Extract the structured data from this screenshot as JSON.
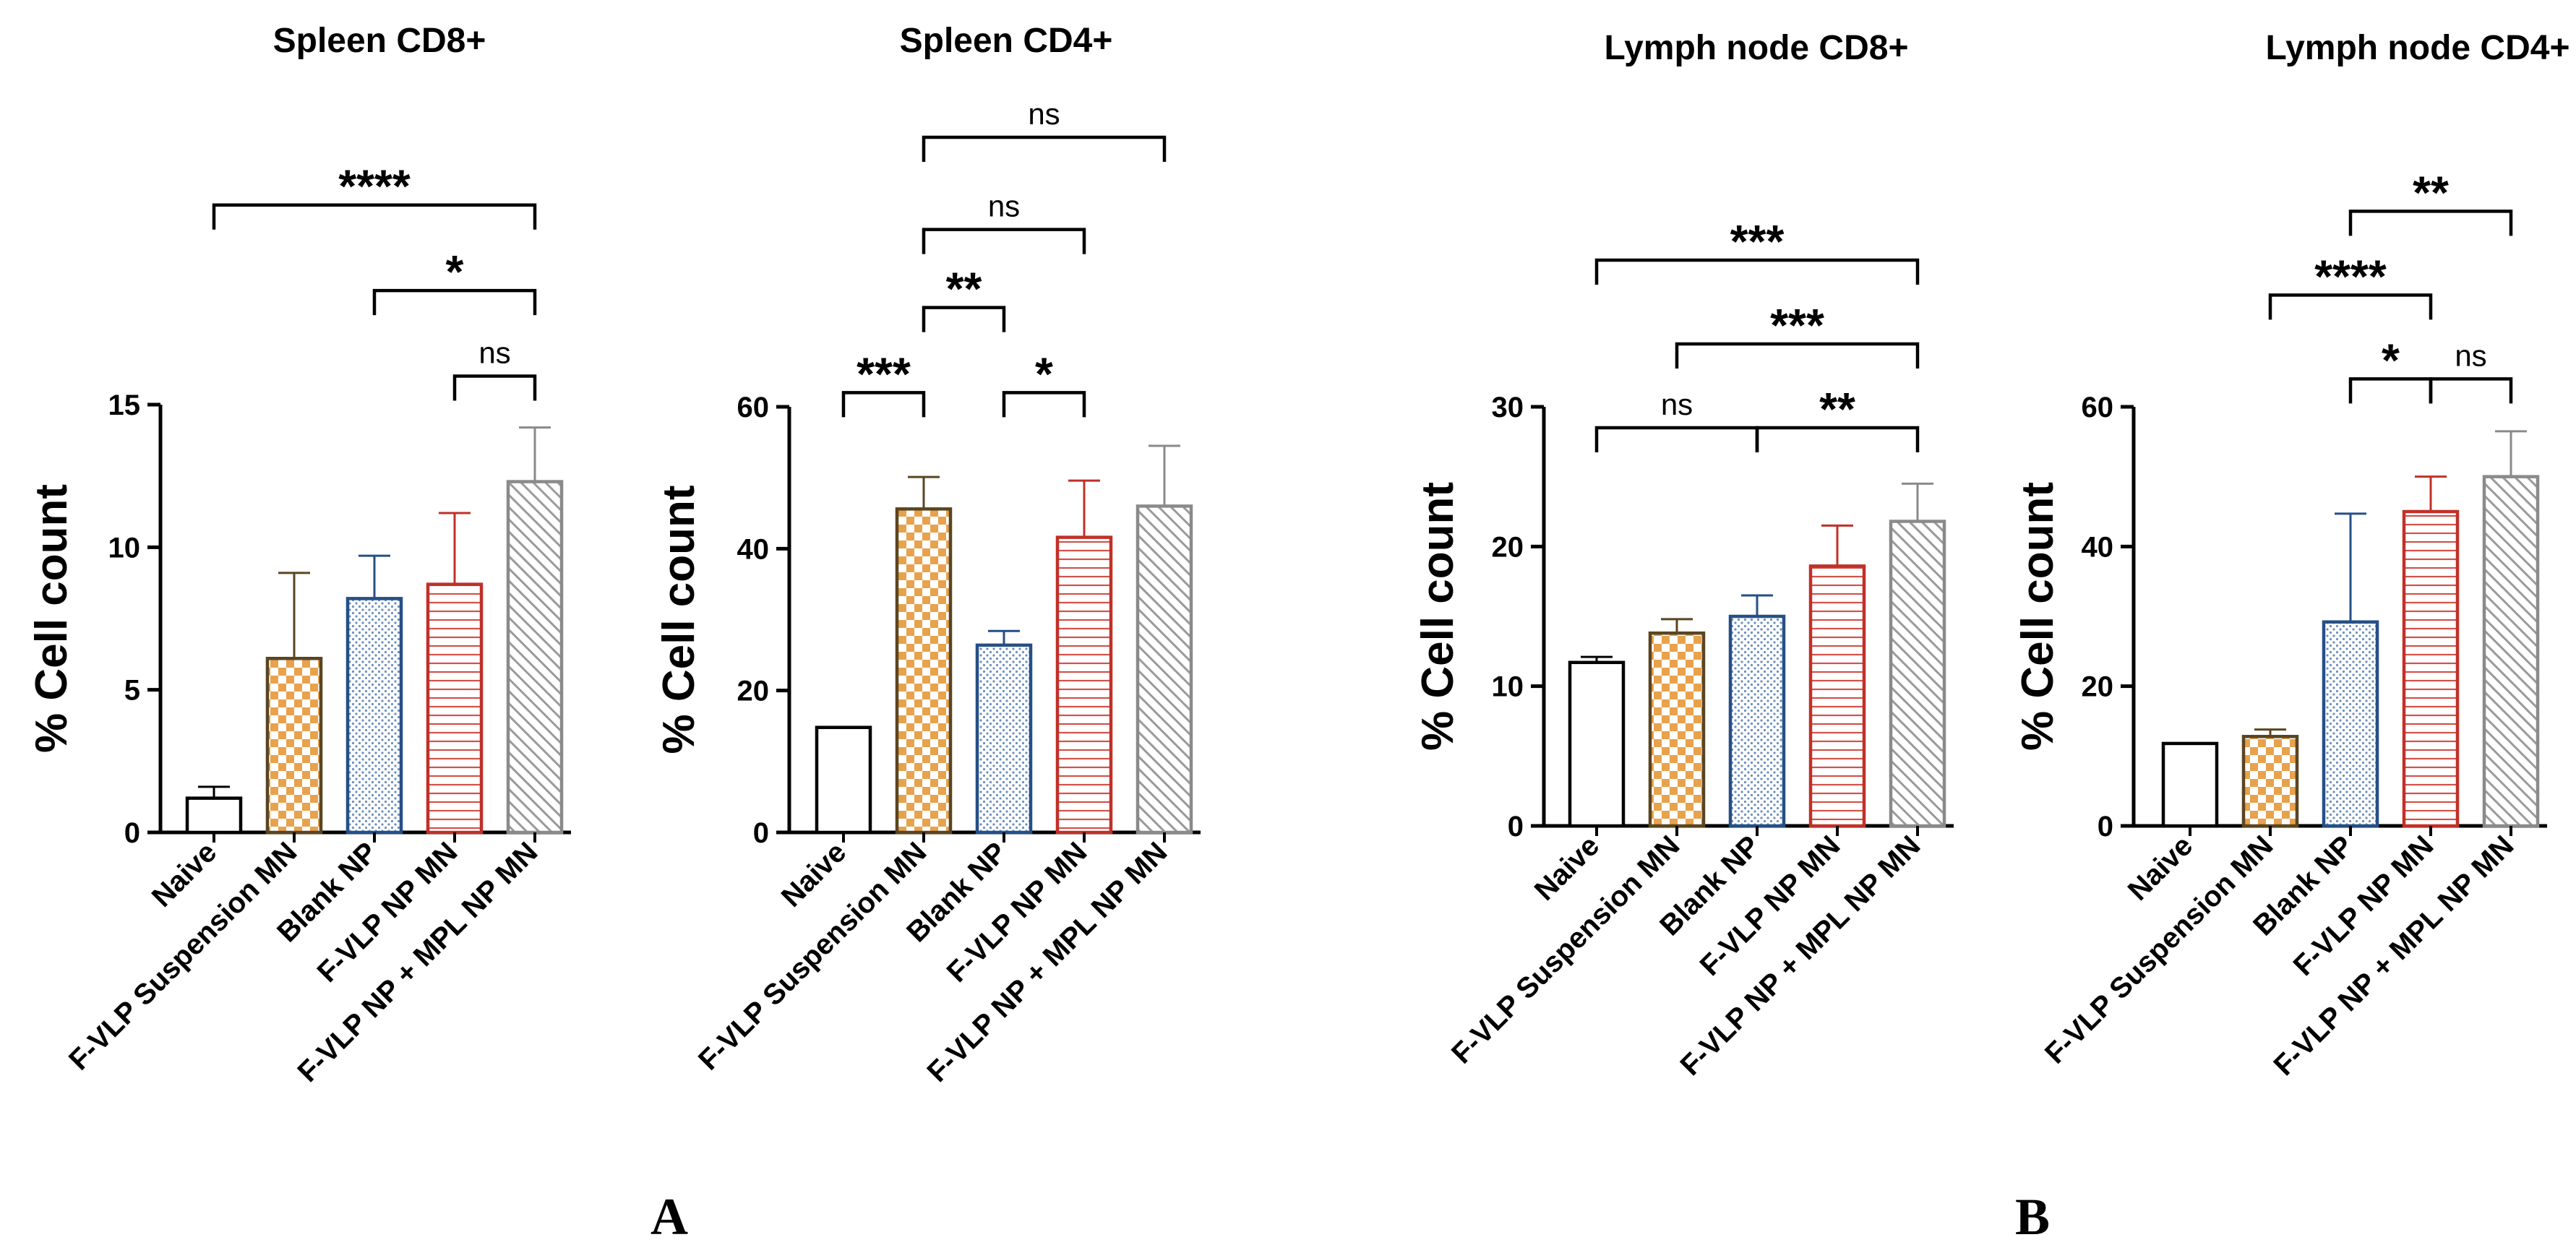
{
  "panel_labels": [
    "A",
    "B"
  ],
  "styles": {
    "naive": {
      "stroke": "#000000",
      "fill": "#ffffff",
      "pattern": "none"
    },
    "susp": {
      "stroke": "#5a4520",
      "fill": "#e8a24c",
      "pattern": "checker"
    },
    "blank": {
      "stroke": "#254f86",
      "fill": "#e4eef8",
      "pattern": "dots"
    },
    "fvlp": {
      "stroke": "#c03028",
      "fill": "#ffffff",
      "pattern": "hlines"
    },
    "mpl": {
      "stroke": "#8a8a8a",
      "fill": "#dcdcdc",
      "pattern": "diag"
    }
  },
  "chart_data": [
    {
      "type": "bar",
      "title": "Spleen CD8+",
      "ylabel": "% Cell count",
      "ylim": [
        0,
        15
      ],
      "yticks": [
        0,
        5,
        10,
        15
      ],
      "categories": [
        "Naive",
        "F-VLP Suspension MN",
        "Blank NP",
        "F-VLP NP MN",
        "F-VLP NP + MPL NP MN"
      ],
      "values": [
        1.2,
        6.1,
        8.2,
        8.7,
        12.3
      ],
      "errors": [
        0.4,
        3.0,
        1.5,
        2.5,
        1.9
      ],
      "comparisons": [
        {
          "from": 0,
          "to": 4,
          "label": "****",
          "y": 22.0
        },
        {
          "from": 2,
          "to": 4,
          "label": "*",
          "y": 19.0
        },
        {
          "from": 3,
          "to": 4,
          "label": "ns",
          "y": 16.0
        }
      ]
    },
    {
      "type": "bar",
      "title": "Spleen CD4+",
      "ylabel": "% Cell count",
      "ylim": [
        0,
        60
      ],
      "yticks": [
        0,
        20,
        40,
        60
      ],
      "categories": [
        "Naive",
        "F-VLP Suspension MN",
        "Blank NP",
        "F-VLP NP MN",
        "F-VLP NP + MPL NP MN"
      ],
      "values": [
        14.8,
        45.6,
        26.4,
        41.6,
        46.0
      ],
      "errors": [
        0,
        4.5,
        2.0,
        8.0,
        8.5
      ],
      "comparisons": [
        {
          "from": 1,
          "to": 4,
          "label": "ns",
          "y": 98.0
        },
        {
          "from": 1,
          "to": 3,
          "label": "ns",
          "y": 85.0
        },
        {
          "from": 1,
          "to": 2,
          "label": "**",
          "y": 74.0
        },
        {
          "from": 0,
          "to": 1,
          "label": "***",
          "y": 62.0
        },
        {
          "from": 2,
          "to": 3,
          "label": "*",
          "y": 62.0
        }
      ]
    },
    {
      "type": "bar",
      "title": "Lymph node CD8+",
      "ylabel": "% Cell count",
      "ylim": [
        0,
        30
      ],
      "yticks": [
        0,
        10,
        20,
        30
      ],
      "categories": [
        "Naive",
        "F-VLP Suspension MN",
        "Blank NP",
        "F-VLP NP MN",
        "F-VLP NP + MPL NP MN"
      ],
      "values": [
        11.7,
        13.8,
        15.0,
        18.6,
        21.8
      ],
      "errors": [
        0.4,
        1.0,
        1.5,
        2.9,
        2.7
      ],
      "comparisons": [
        {
          "from": 0,
          "to": 4,
          "label": "***",
          "y": 40.5
        },
        {
          "from": 1,
          "to": 4,
          "label": "***",
          "y": 34.5
        },
        {
          "from": 0,
          "to": 2,
          "label": "ns",
          "y": 28.5
        },
        {
          "from": 2,
          "to": 4,
          "label": "**",
          "y": 28.5
        }
      ]
    },
    {
      "type": "bar",
      "title": "Lymph node CD4+",
      "ylabel": "% Cell count",
      "ylim": [
        0,
        60
      ],
      "yticks": [
        0,
        20,
        40,
        60
      ],
      "categories": [
        "Naive",
        "F-VLP Suspension MN",
        "Blank NP",
        "F-VLP NP MN",
        "F-VLP NP + MPL NP MN"
      ],
      "values": [
        11.8,
        12.8,
        29.2,
        45.0,
        50.0
      ],
      "errors": [
        0,
        1.0,
        15.5,
        5.0,
        6.5
      ],
      "comparisons": [
        {
          "from": 2,
          "to": 4,
          "label": "**",
          "y": 88.0
        },
        {
          "from": 1,
          "to": 3,
          "label": "****",
          "y": 76.0
        },
        {
          "from": 2,
          "to": 3,
          "label": "*",
          "y": 64.0
        },
        {
          "from": 3,
          "to": 4,
          "label": "ns",
          "y": 64.0
        }
      ]
    }
  ]
}
